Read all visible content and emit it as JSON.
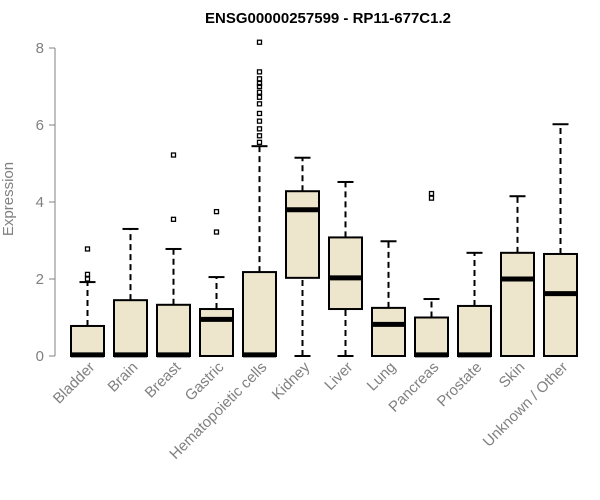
{
  "chart_data": {
    "type": "box",
    "title": "ENSG00000257599 - RP11-677C1.2",
    "ylabel": "Expression",
    "xlabel": "",
    "ylim": [
      0,
      8
    ],
    "yticks": [
      0,
      2,
      4,
      6,
      8
    ],
    "fill_color": "#ede6cc",
    "categories": [
      "Bladder",
      "Brain",
      "Breast",
      "Gastric",
      "Hematopoietic cells",
      "Kidney",
      "Liver",
      "Lung",
      "Pancreas",
      "Prostate",
      "Skin",
      "Unknown / Other"
    ],
    "boxes": [
      {
        "min": 0,
        "q1": 0,
        "median": 0.03,
        "q3": 0.78,
        "max": 1.92,
        "outliers": [
          2.0,
          2.12,
          2.78
        ]
      },
      {
        "min": 0,
        "q1": 0,
        "median": 0.03,
        "q3": 1.45,
        "max": 3.3,
        "outliers": []
      },
      {
        "min": 0,
        "q1": 0,
        "median": 0.03,
        "q3": 1.33,
        "max": 2.78,
        "outliers": [
          3.55,
          5.22
        ]
      },
      {
        "min": 0,
        "q1": 0,
        "median": 0.95,
        "q3": 1.22,
        "max": 2.05,
        "outliers": [
          3.22,
          3.75
        ]
      },
      {
        "min": 0,
        "q1": 0,
        "median": 0.03,
        "q3": 2.18,
        "max": 5.45,
        "outliers": [
          5.55,
          5.72,
          5.9,
          6.1,
          6.3,
          6.55,
          6.72,
          6.85,
          7.0,
          7.08,
          7.2,
          7.38,
          8.15
        ]
      },
      {
        "min": 0,
        "q1": 2.03,
        "median": 3.8,
        "q3": 4.28,
        "max": 5.15,
        "outliers": []
      },
      {
        "min": 0,
        "q1": 1.22,
        "median": 2.03,
        "q3": 3.08,
        "max": 4.52,
        "outliers": []
      },
      {
        "min": 0,
        "q1": 0,
        "median": 0.82,
        "q3": 1.25,
        "max": 2.98,
        "outliers": []
      },
      {
        "min": 0,
        "q1": 0,
        "median": 0.03,
        "q3": 1.0,
        "max": 1.48,
        "outliers": [
          4.1,
          4.22
        ]
      },
      {
        "min": 0,
        "q1": 0,
        "median": 0.03,
        "q3": 1.3,
        "max": 2.68,
        "outliers": []
      },
      {
        "min": 0,
        "q1": 0,
        "median": 2.0,
        "q3": 2.68,
        "max": 4.15,
        "outliers": []
      },
      {
        "min": 0,
        "q1": 0,
        "median": 1.62,
        "q3": 2.65,
        "max": 6.02,
        "outliers": []
      }
    ]
  }
}
